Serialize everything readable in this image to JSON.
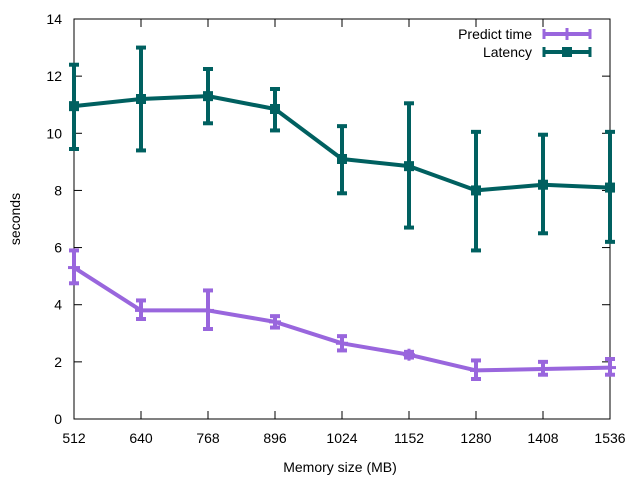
{
  "chart_data": {
    "type": "line",
    "title": "",
    "xlabel": "Memory size (MB)",
    "ylabel": "seconds",
    "x": [
      512,
      640,
      768,
      896,
      1024,
      1152,
      1280,
      1408,
      1536
    ],
    "xlim": [
      512,
      1536
    ],
    "ylim": [
      0,
      14
    ],
    "xticks": [
      512,
      640,
      768,
      896,
      1024,
      1152,
      1280,
      1408,
      1536
    ],
    "yticks": [
      0,
      2,
      4,
      6,
      8,
      10,
      12,
      14
    ],
    "grid": false,
    "legend_position": "top-right",
    "series": [
      {
        "name": "Predict time",
        "color": "#9966dd",
        "marker": "plus",
        "values": [
          5.3,
          3.8,
          3.8,
          3.4,
          2.65,
          2.25,
          1.7,
          1.75,
          1.8
        ],
        "err_low": [
          4.75,
          3.5,
          3.15,
          3.2,
          2.4,
          2.15,
          1.4,
          1.55,
          1.55
        ],
        "err_high": [
          5.9,
          4.15,
          4.5,
          3.6,
          2.9,
          2.35,
          2.05,
          2.0,
          2.1
        ]
      },
      {
        "name": "Latency",
        "color": "#006060",
        "marker": "square",
        "values": [
          10.95,
          11.2,
          11.3,
          10.85,
          9.1,
          8.85,
          8.0,
          8.2,
          8.1
        ],
        "err_low": [
          9.45,
          9.4,
          10.35,
          10.1,
          7.9,
          6.7,
          5.9,
          6.5,
          6.2
        ],
        "err_high": [
          12.4,
          13.0,
          12.25,
          11.55,
          10.25,
          11.05,
          10.05,
          9.95,
          10.05
        ]
      }
    ]
  }
}
